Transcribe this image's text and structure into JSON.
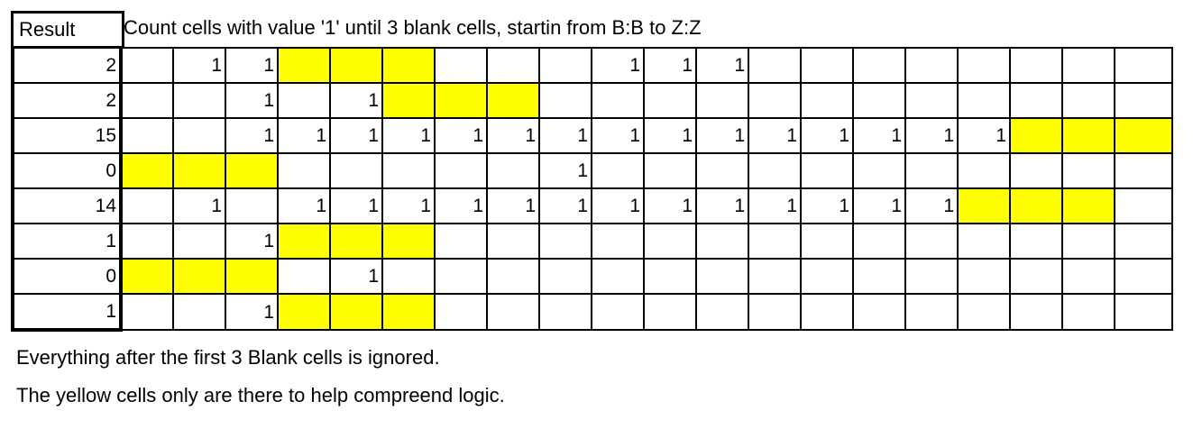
{
  "header": {
    "result_label": "Result",
    "title": "Count cells with value '1' until 3 blank cells, startin from B:B to Z:Z"
  },
  "colors": {
    "highlight": "#ffff00",
    "border": "#000000"
  },
  "rows": [
    {
      "result": "2",
      "cells": [
        "",
        "1",
        "1",
        "Y",
        "Y",
        "Y",
        "",
        "",
        "",
        "1",
        "1",
        "1",
        "",
        "",
        "",
        "",
        "",
        "",
        "",
        ""
      ]
    },
    {
      "result": "2",
      "cells": [
        "",
        "",
        "1",
        "",
        "1",
        "Y",
        "Y",
        "Y",
        "",
        "",
        "",
        "",
        "",
        "",
        "",
        "",
        "",
        "",
        "",
        ""
      ]
    },
    {
      "result": "15",
      "cells": [
        "",
        "",
        "1",
        "1",
        "1",
        "1",
        "1",
        "1",
        "1",
        "1",
        "1",
        "1",
        "1",
        "1",
        "1",
        "1",
        "1",
        "Y",
        "Y",
        "Y"
      ]
    },
    {
      "result": "0",
      "cells": [
        "Y",
        "Y",
        "Y",
        "",
        "",
        "",
        "",
        "",
        "1",
        "",
        "",
        "",
        "",
        "",
        "",
        "",
        "",
        "",
        "",
        ""
      ]
    },
    {
      "result": "14",
      "cells": [
        "",
        "1",
        "",
        "1",
        "1",
        "1",
        "1",
        "1",
        "1",
        "1",
        "1",
        "1",
        "1",
        "1",
        "1",
        "1",
        "Y",
        "Y",
        "Y",
        ""
      ]
    },
    {
      "result": "1",
      "cells": [
        "",
        "",
        "1",
        "Y",
        "Y",
        "Y",
        "",
        "",
        "",
        "",
        "",
        "",
        "",
        "",
        "",
        "",
        "",
        "",
        "",
        ""
      ]
    },
    {
      "result": "0",
      "cells": [
        "Y",
        "Y",
        "Y",
        "",
        "1",
        "",
        "",
        "",
        "",
        "",
        "",
        "",
        "",
        "",
        "",
        "",
        "",
        "",
        "",
        ""
      ]
    },
    {
      "result": "1",
      "cells": [
        "",
        "",
        "1",
        "Y",
        "Y",
        "Y",
        "",
        "",
        "",
        "",
        "",
        "",
        "",
        "",
        "",
        "",
        "",
        "",
        "",
        ""
      ]
    }
  ],
  "notes": [
    "Everything after the first 3 Blank cells is ignored.",
    "The yellow cells only are there to help compreend logic."
  ]
}
